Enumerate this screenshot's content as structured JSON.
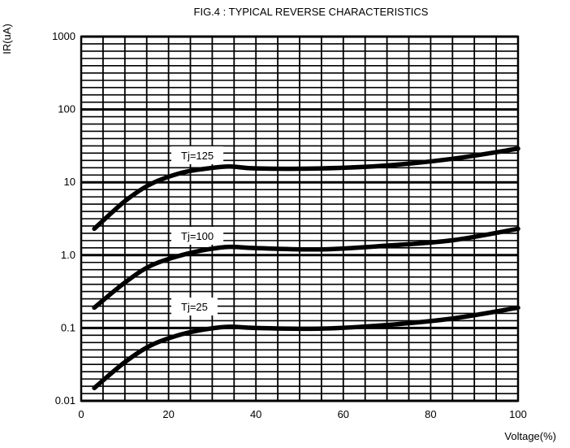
{
  "chart_data": {
    "type": "line",
    "title": "FIG.4 : TYPICAL REVERSE CHARACTERISTICS",
    "xlabel": "Voltage(%)",
    "ylabel": "IR(uA)",
    "xlim": [
      0,
      100
    ],
    "ylim": [
      0.01,
      1000
    ],
    "yscale": "log",
    "grid": true,
    "x_ticks": [
      "0",
      "20",
      "40",
      "60",
      "80",
      "100"
    ],
    "y_ticks": [
      "0.01",
      "0.1",
      "1.0",
      "10",
      "100",
      "1000"
    ],
    "series": [
      {
        "name": "Tj=125",
        "x": [
          3,
          10,
          16,
          23,
          29,
          34,
          40,
          55,
          70,
          85,
          100
        ],
        "y": [
          2.3,
          5.5,
          9.5,
          13.5,
          15.5,
          16.5,
          15.5,
          15.5,
          17,
          21,
          29
        ]
      },
      {
        "name": "Tj=100",
        "x": [
          3,
          10,
          16,
          23,
          29,
          34,
          40,
          55,
          70,
          85,
          100
        ],
        "y": [
          0.19,
          0.42,
          0.72,
          1.0,
          1.2,
          1.3,
          1.25,
          1.2,
          1.35,
          1.6,
          2.3
        ]
      },
      {
        "name": "Tj=25",
        "x": [
          3,
          10,
          16,
          23,
          29,
          34,
          40,
          55,
          70,
          85,
          100
        ],
        "y": [
          0.015,
          0.034,
          0.058,
          0.082,
          0.097,
          0.104,
          0.1,
          0.098,
          0.11,
          0.135,
          0.19
        ]
      }
    ]
  }
}
